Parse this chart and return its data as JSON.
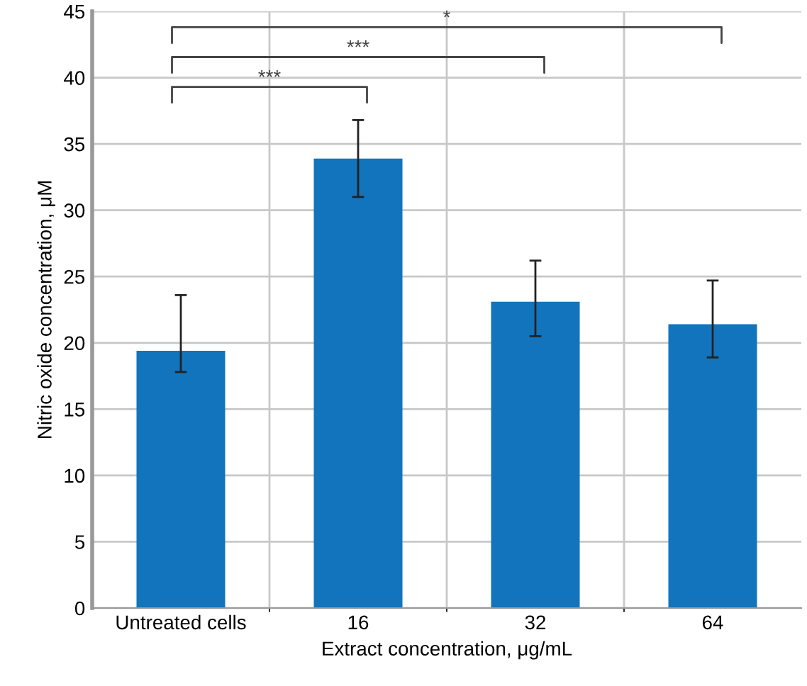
{
  "chart_data": {
    "type": "bar",
    "xlabel": "Extract concentration, μg/mL",
    "ylabel": "Nitric oxide concentration, μM",
    "categories": [
      "Untreated cells",
      "16",
      "32",
      "64"
    ],
    "values": [
      19.4,
      33.9,
      23.1,
      21.4
    ],
    "errors": [
      [
        17.8,
        23.6
      ],
      [
        31.0,
        36.8
      ],
      [
        20.5,
        26.2
      ],
      [
        18.9,
        24.7
      ]
    ],
    "color": "#1174bc",
    "ylim": [
      0,
      45
    ],
    "yticks": [
      0,
      5,
      10,
      15,
      20,
      25,
      30,
      35,
      40,
      45
    ],
    "grid": true,
    "annotations": [
      "***",
      "***",
      "*"
    ]
  }
}
